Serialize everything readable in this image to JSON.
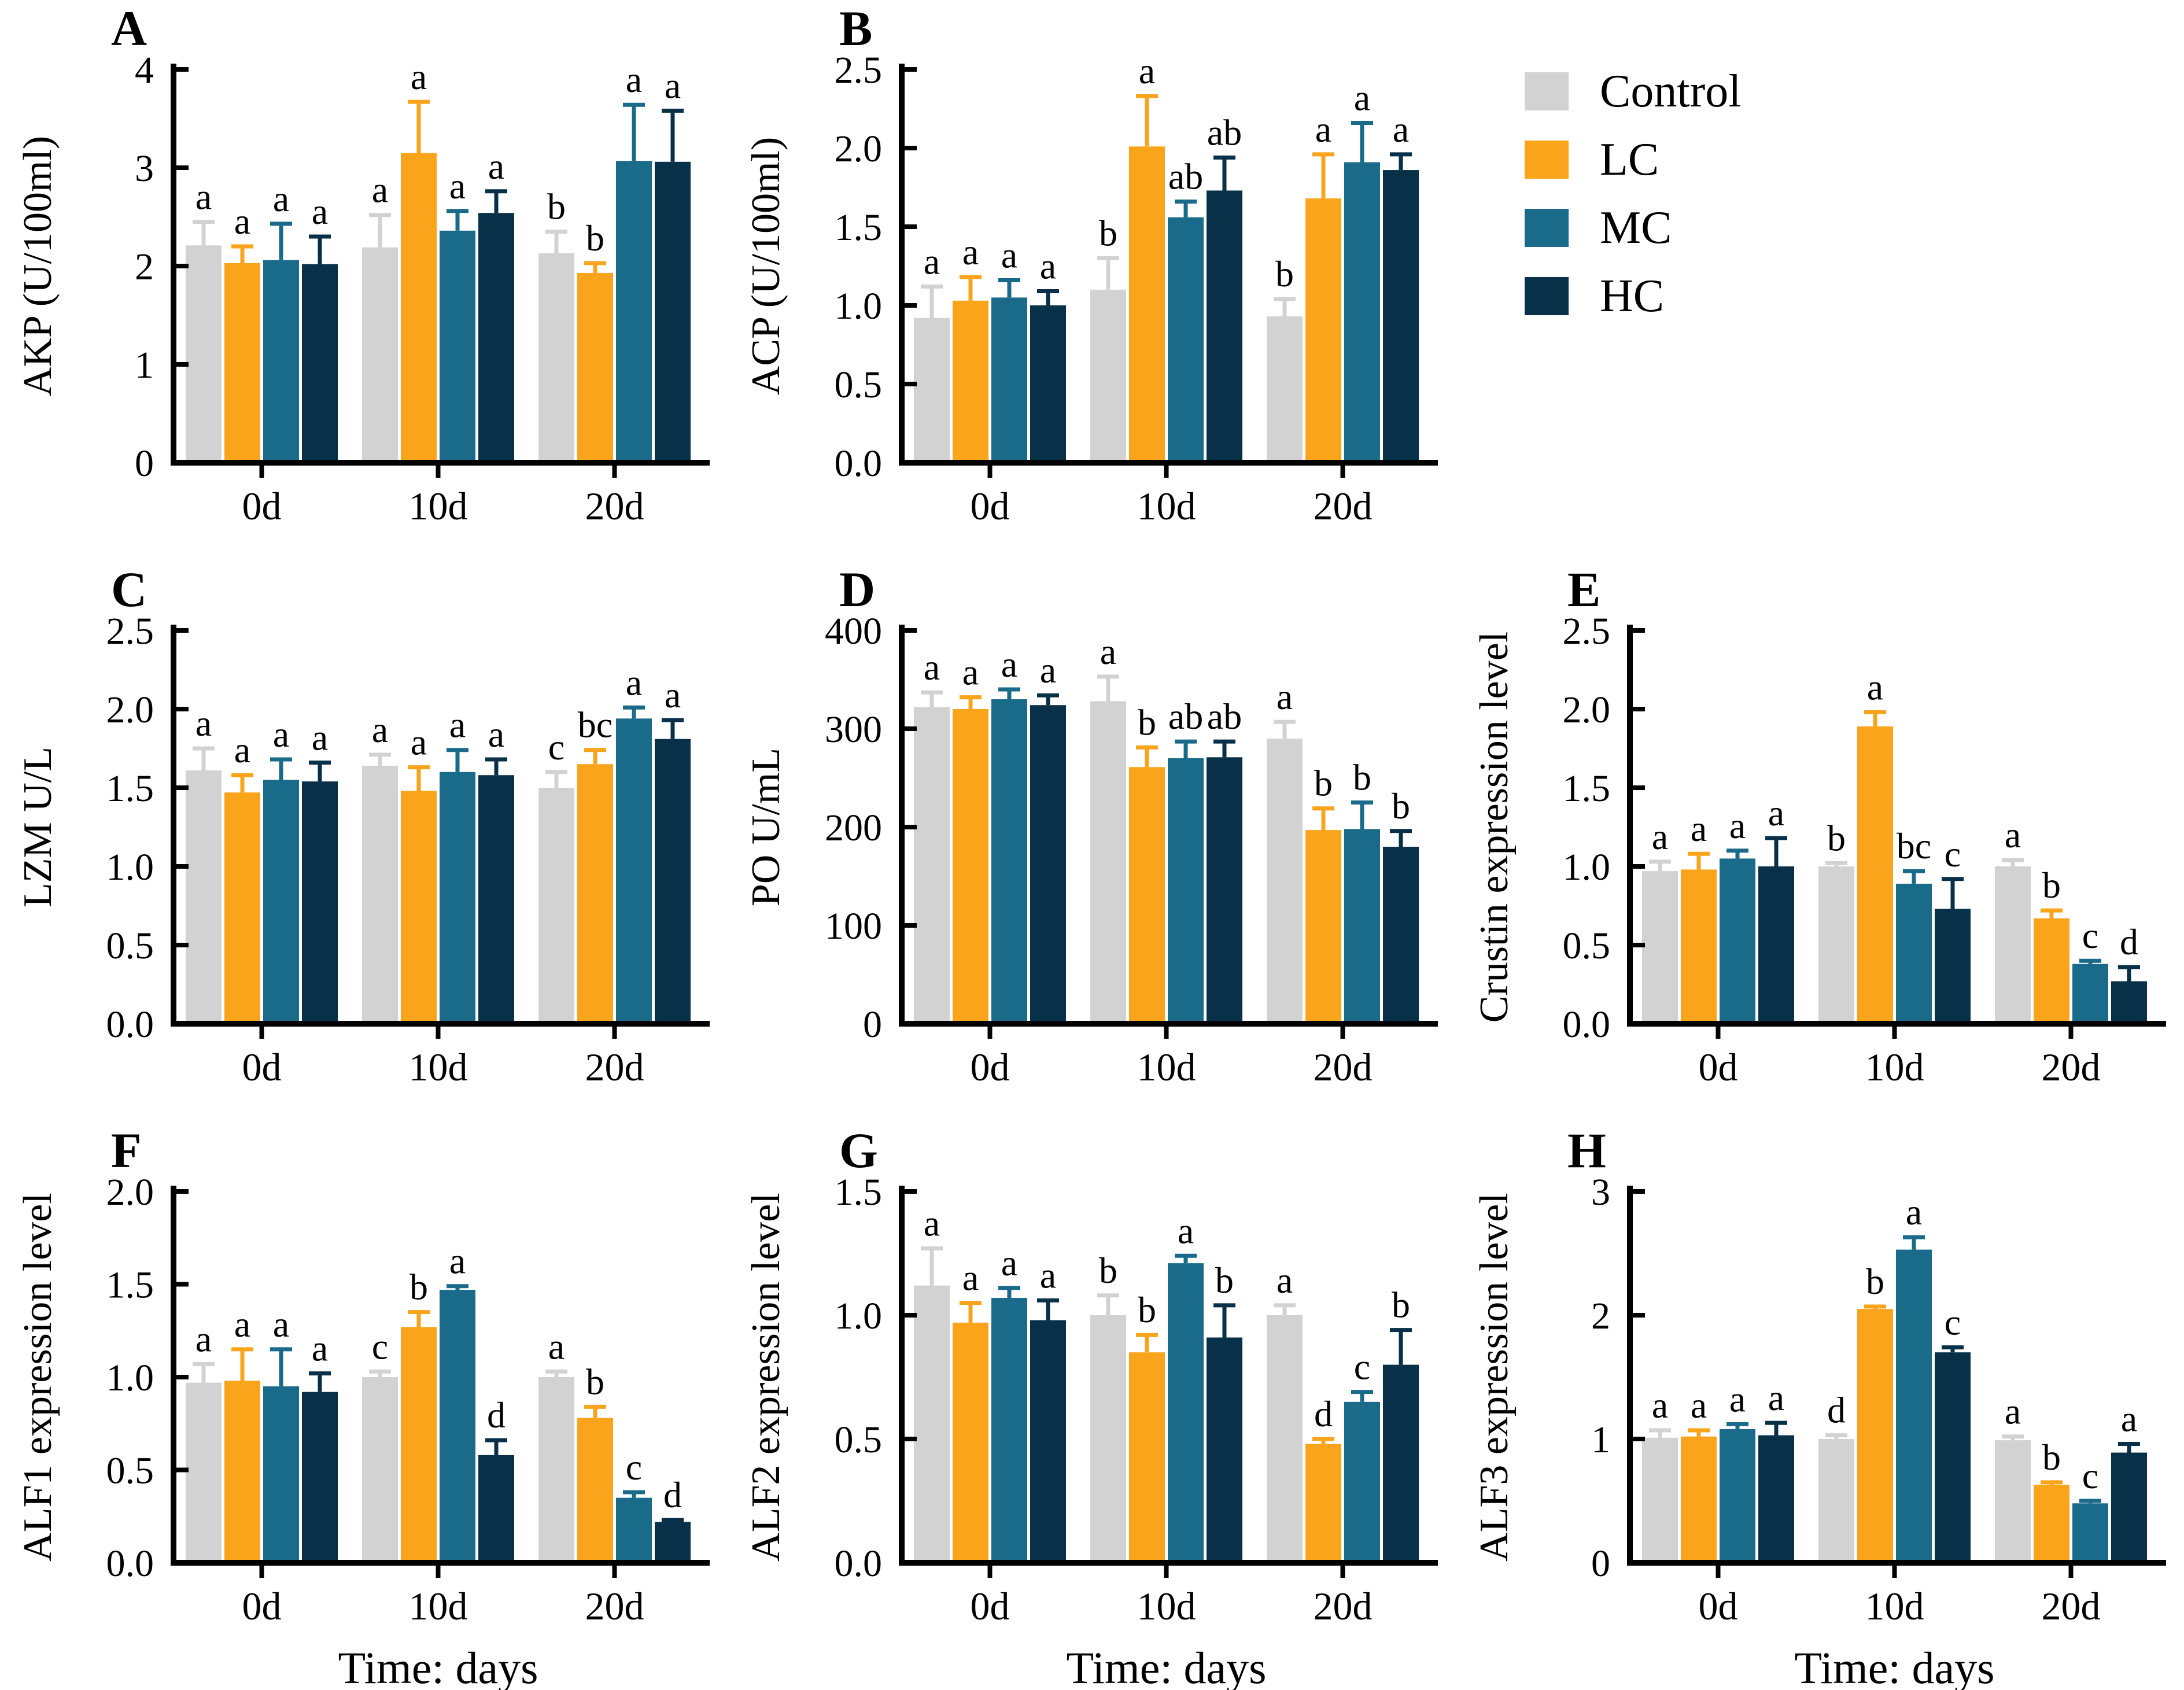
{
  "legend": {
    "items": [
      {
        "label": "Control",
        "color": "#D2D2D2"
      },
      {
        "label": "LC",
        "color": "#FAA41C"
      },
      {
        "label": "MC",
        "color": "#1A6A89"
      },
      {
        "label": "HC",
        "color": "#083048"
      }
    ]
  },
  "colors": {
    "axis": "#000000",
    "significance_letters": "#000000",
    "background": "#FFFFFF"
  },
  "time_axis_label": "Time: days",
  "chart_data": [
    {
      "panel": "A",
      "type": "bar",
      "ylabel": "AKP (U/100ml)",
      "ylim": [
        0,
        4
      ],
      "ytick_step": 1,
      "ytick_decimals": 0,
      "categories": [
        "0d",
        "10d",
        "20d"
      ],
      "xlabel": "",
      "series": [
        {
          "name": "Control",
          "values": [
            2.21,
            2.19,
            2.13
          ],
          "errors": [
            0.24,
            0.33,
            0.22
          ],
          "letters": [
            "a",
            "a",
            "b"
          ]
        },
        {
          "name": "LC",
          "values": [
            2.03,
            3.15,
            1.93
          ],
          "errors": [
            0.17,
            0.52,
            0.1
          ],
          "letters": [
            "a",
            "a",
            "b"
          ]
        },
        {
          "name": "MC",
          "values": [
            2.06,
            2.36,
            3.07
          ],
          "errors": [
            0.37,
            0.2,
            0.57
          ],
          "letters": [
            "a",
            "a",
            "a"
          ]
        },
        {
          "name": "HC",
          "values": [
            2.02,
            2.54,
            3.06
          ],
          "errors": [
            0.28,
            0.22,
            0.52
          ],
          "letters": [
            "a",
            "a",
            "a"
          ]
        }
      ]
    },
    {
      "panel": "B",
      "type": "bar",
      "ylabel": "ACP (U/100ml)",
      "ylim": [
        0,
        2.5
      ],
      "ytick_step": 0.5,
      "ytick_decimals": 1,
      "categories": [
        "0d",
        "10d",
        "20d"
      ],
      "xlabel": "",
      "series": [
        {
          "name": "Control",
          "values": [
            0.92,
            1.1,
            0.93
          ],
          "errors": [
            0.2,
            0.2,
            0.11
          ],
          "letters": [
            "a",
            "b",
            "b"
          ]
        },
        {
          "name": "LC",
          "values": [
            1.03,
            2.01,
            1.68
          ],
          "errors": [
            0.15,
            0.32,
            0.28
          ],
          "letters": [
            "a",
            "a",
            "a"
          ]
        },
        {
          "name": "MC",
          "values": [
            1.05,
            1.56,
            1.91
          ],
          "errors": [
            0.11,
            0.1,
            0.25
          ],
          "letters": [
            "a",
            "ab",
            "a"
          ]
        },
        {
          "name": "HC",
          "values": [
            1.0,
            1.73,
            1.86
          ],
          "errors": [
            0.09,
            0.21,
            0.1
          ],
          "letters": [
            "a",
            "ab",
            "a"
          ]
        }
      ]
    },
    {
      "panel": "C",
      "type": "bar",
      "ylabel": "LZM U/L",
      "ylim": [
        0,
        2.5
      ],
      "ytick_step": 0.5,
      "ytick_decimals": 1,
      "categories": [
        "0d",
        "10d",
        "20d"
      ],
      "xlabel": "",
      "series": [
        {
          "name": "Control",
          "values": [
            1.61,
            1.64,
            1.5
          ],
          "errors": [
            0.14,
            0.07,
            0.1
          ],
          "letters": [
            "a",
            "a",
            "c"
          ]
        },
        {
          "name": "LC",
          "values": [
            1.47,
            1.48,
            1.65
          ],
          "errors": [
            0.11,
            0.15,
            0.09
          ],
          "letters": [
            "a",
            "a",
            "bc"
          ]
        },
        {
          "name": "MC",
          "values": [
            1.55,
            1.6,
            1.94
          ],
          "errors": [
            0.13,
            0.14,
            0.07
          ],
          "letters": [
            "a",
            "a",
            "a"
          ]
        },
        {
          "name": "HC",
          "values": [
            1.54,
            1.58,
            1.81
          ],
          "errors": [
            0.12,
            0.1,
            0.12
          ],
          "letters": [
            "a",
            "a",
            "a"
          ]
        }
      ]
    },
    {
      "panel": "D",
      "type": "bar",
      "ylabel": "PO U/mL",
      "ylim": [
        0,
        400
      ],
      "ytick_step": 100,
      "ytick_decimals": 0,
      "categories": [
        "0d",
        "10d",
        "20d"
      ],
      "xlabel": "",
      "series": [
        {
          "name": "Control",
          "values": [
            322,
            328,
            290
          ],
          "errors": [
            15,
            25,
            17
          ],
          "letters": [
            "a",
            "a",
            "a"
          ]
        },
        {
          "name": "LC",
          "values": [
            320,
            261,
            197
          ],
          "errors": [
            12,
            20,
            22
          ],
          "letters": [
            "a",
            "b",
            "b"
          ]
        },
        {
          "name": "MC",
          "values": [
            330,
            270,
            198
          ],
          "errors": [
            10,
            17,
            27
          ],
          "letters": [
            "a",
            "ab",
            "b"
          ]
        },
        {
          "name": "HC",
          "values": [
            324,
            271,
            180
          ],
          "errors": [
            10,
            16,
            16
          ],
          "letters": [
            "a",
            "ab",
            "b"
          ]
        }
      ]
    },
    {
      "panel": "E",
      "type": "bar",
      "ylabel": "Crustin expression level",
      "ylim": [
        0,
        2.5
      ],
      "ytick_step": 0.5,
      "ytick_decimals": 1,
      "categories": [
        "0d",
        "10d",
        "20d"
      ],
      "xlabel": "",
      "series": [
        {
          "name": "Control",
          "values": [
            0.97,
            1.0,
            1.0
          ],
          "errors": [
            0.06,
            0.02,
            0.04
          ],
          "letters": [
            "a",
            "b",
            "a"
          ]
        },
        {
          "name": "LC",
          "values": [
            0.98,
            1.89,
            0.67
          ],
          "errors": [
            0.1,
            0.09,
            0.05
          ],
          "letters": [
            "a",
            "a",
            "b"
          ]
        },
        {
          "name": "MC",
          "values": [
            1.05,
            0.89,
            0.38
          ],
          "errors": [
            0.05,
            0.08,
            0.02
          ],
          "letters": [
            "a",
            "bc",
            "c"
          ]
        },
        {
          "name": "HC",
          "values": [
            1.0,
            0.73,
            0.27
          ],
          "errors": [
            0.18,
            0.19,
            0.09
          ],
          "letters": [
            "a",
            "c",
            "d"
          ]
        }
      ]
    },
    {
      "panel": "F",
      "type": "bar",
      "ylabel": "ALF1 expression level",
      "ylim": [
        0,
        2.0
      ],
      "ytick_step": 0.5,
      "ytick_decimals": 1,
      "categories": [
        "0d",
        "10d",
        "20d"
      ],
      "xlabel": "Time: days",
      "series": [
        {
          "name": "Control",
          "values": [
            0.97,
            1.0,
            1.0
          ],
          "errors": [
            0.1,
            0.03,
            0.03
          ],
          "letters": [
            "a",
            "c",
            "a"
          ]
        },
        {
          "name": "LC",
          "values": [
            0.98,
            1.27,
            0.78
          ],
          "errors": [
            0.17,
            0.08,
            0.06
          ],
          "letters": [
            "a",
            "b",
            "b"
          ]
        },
        {
          "name": "MC",
          "values": [
            0.95,
            1.47,
            0.35
          ],
          "errors": [
            0.2,
            0.02,
            0.03
          ],
          "letters": [
            "a",
            "a",
            "c"
          ]
        },
        {
          "name": "HC",
          "values": [
            0.92,
            0.58,
            0.22
          ],
          "errors": [
            0.1,
            0.08,
            0.01
          ],
          "letters": [
            "a",
            "d",
            "d"
          ]
        }
      ]
    },
    {
      "panel": "G",
      "type": "bar",
      "ylabel": "ALF2 expression level",
      "ylim": [
        0,
        1.5
      ],
      "ytick_step": 0.5,
      "ytick_decimals": 1,
      "categories": [
        "0d",
        "10d",
        "20d"
      ],
      "xlabel": "Time: days",
      "series": [
        {
          "name": "Control",
          "values": [
            1.12,
            1.0,
            1.0
          ],
          "errors": [
            0.15,
            0.08,
            0.04
          ],
          "letters": [
            "a",
            "b",
            "a"
          ]
        },
        {
          "name": "LC",
          "values": [
            0.97,
            0.85,
            0.48
          ],
          "errors": [
            0.08,
            0.07,
            0.02
          ],
          "letters": [
            "a",
            "b",
            "d"
          ]
        },
        {
          "name": "MC",
          "values": [
            1.07,
            1.21,
            0.65
          ],
          "errors": [
            0.04,
            0.03,
            0.04
          ],
          "letters": [
            "a",
            "a",
            "c"
          ]
        },
        {
          "name": "HC",
          "values": [
            0.98,
            0.91,
            0.8
          ],
          "errors": [
            0.08,
            0.13,
            0.14
          ],
          "letters": [
            "a",
            "b",
            "b"
          ]
        }
      ]
    },
    {
      "panel": "H",
      "type": "bar",
      "ylabel": "ALF3 expression level",
      "ylim": [
        0,
        3
      ],
      "ytick_step": 1,
      "ytick_decimals": 0,
      "categories": [
        "0d",
        "10d",
        "20d"
      ],
      "xlabel": "Time: days",
      "series": [
        {
          "name": "Control",
          "values": [
            1.01,
            1.0,
            0.99
          ],
          "errors": [
            0.06,
            0.03,
            0.03
          ],
          "letters": [
            "a",
            "d",
            "a"
          ]
        },
        {
          "name": "LC",
          "values": [
            1.02,
            2.05,
            0.63
          ],
          "errors": [
            0.05,
            0.02,
            0.02
          ],
          "letters": [
            "a",
            "b",
            "b"
          ]
        },
        {
          "name": "MC",
          "values": [
            1.08,
            2.53,
            0.48
          ],
          "errors": [
            0.04,
            0.1,
            0.02
          ],
          "letters": [
            "a",
            "a",
            "c"
          ]
        },
        {
          "name": "HC",
          "values": [
            1.03,
            1.7,
            0.89
          ],
          "errors": [
            0.1,
            0.04,
            0.07
          ],
          "letters": [
            "a",
            "c",
            "a"
          ]
        }
      ]
    }
  ]
}
